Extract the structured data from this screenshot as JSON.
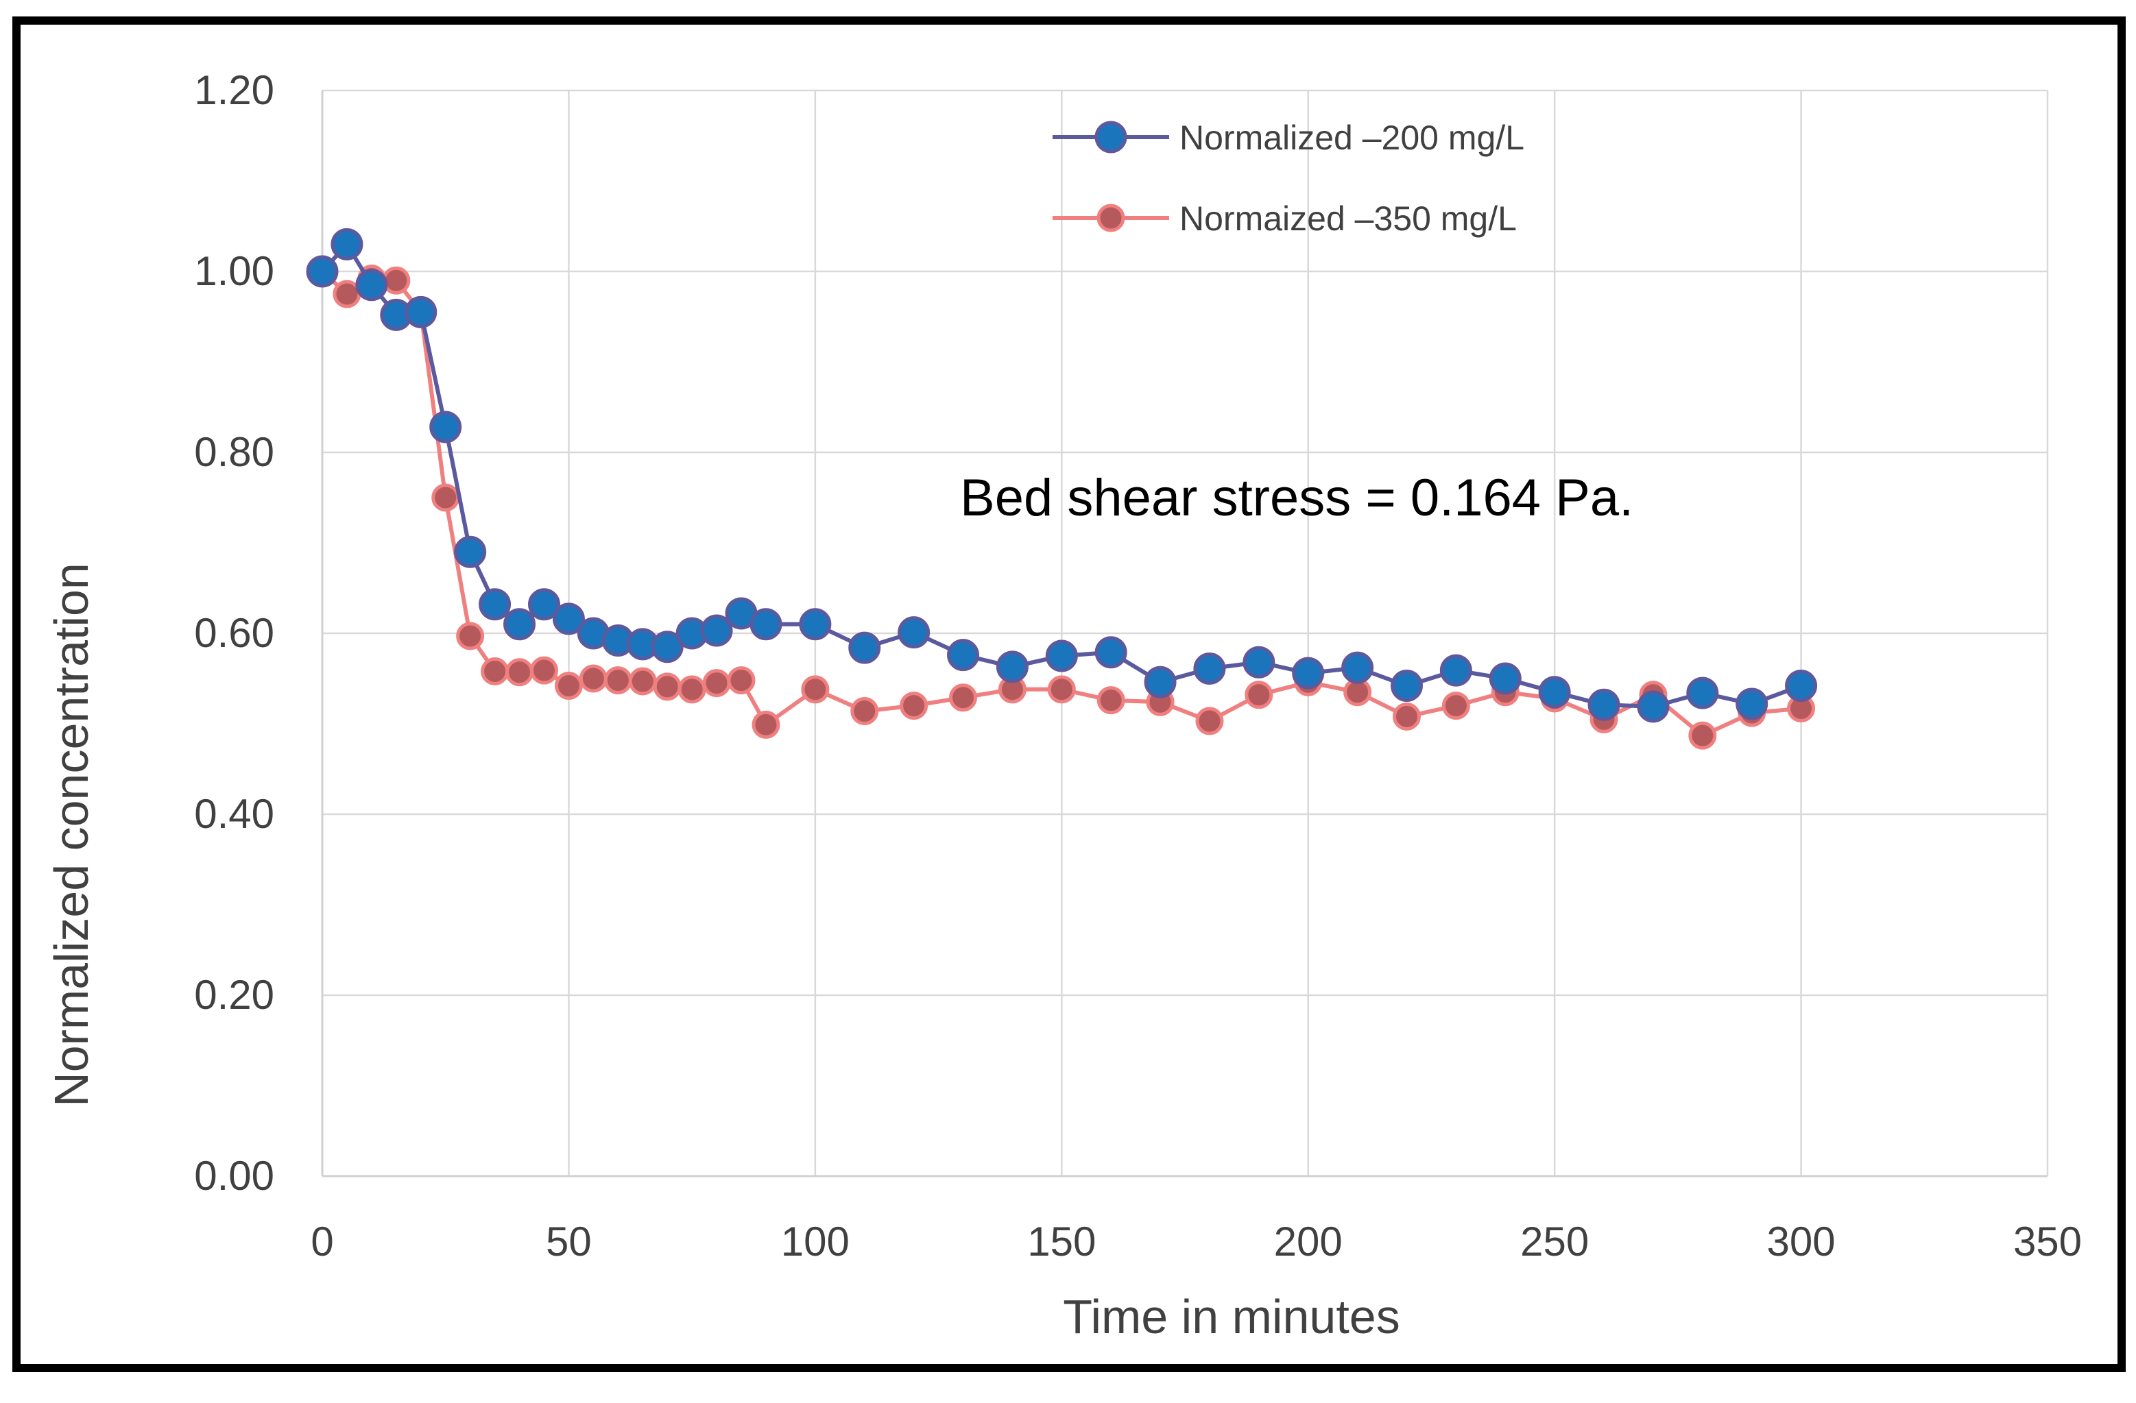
{
  "chart_data": {
    "type": "line",
    "title": "",
    "xlabel": "Time in minutes",
    "ylabel": "Normalized concentration",
    "xlim": [
      0,
      350
    ],
    "ylim": [
      0,
      1.2
    ],
    "x_ticks": [
      "0",
      "50",
      "100",
      "150",
      "200",
      "250",
      "300",
      "350"
    ],
    "y_ticks": [
      "0.00",
      "0.20",
      "0.40",
      "0.60",
      "0.80",
      "1.00",
      "1.20"
    ],
    "grid": true,
    "legend_position": "top-center",
    "annotation": "Bed shear stress = 0.164 Pa.",
    "series": [
      {
        "name": "Normalized –200 mg/L",
        "line_color": "#5B5A9E",
        "marker_color": "#1B75BC",
        "marker_edge": "#5B5A9E",
        "x": [
          0,
          5,
          10,
          15,
          20,
          25,
          30,
          35,
          40,
          45,
          50,
          55,
          60,
          65,
          70,
          75,
          80,
          85,
          90,
          100,
          110,
          120,
          130,
          140,
          150,
          160,
          170,
          180,
          190,
          200,
          210,
          220,
          230,
          240,
          250,
          260,
          270,
          280,
          290,
          300
        ],
        "values": [
          1.0,
          1.03,
          0.985,
          0.952,
          0.955,
          0.828,
          0.69,
          0.632,
          0.61,
          0.632,
          0.616,
          0.6,
          0.592,
          0.588,
          0.585,
          0.6,
          0.603,
          0.622,
          0.61,
          0.61,
          0.584,
          0.601,
          0.576,
          0.563,
          0.575,
          0.579,
          0.546,
          0.561,
          0.568,
          0.556,
          0.562,
          0.542,
          0.559,
          0.55,
          0.535,
          0.521,
          0.519,
          0.534,
          0.522,
          0.542
        ]
      },
      {
        "name": "Normaized –350 mg/L",
        "line_color": "#F08080",
        "marker_color": "#B5595C",
        "marker_edge": "#F08080",
        "x": [
          0,
          5,
          10,
          15,
          20,
          25,
          30,
          35,
          40,
          45,
          50,
          55,
          60,
          65,
          70,
          75,
          80,
          85,
          90,
          100,
          110,
          120,
          130,
          140,
          150,
          160,
          170,
          180,
          190,
          200,
          210,
          220,
          230,
          240,
          250,
          260,
          270,
          280,
          290,
          300
        ],
        "values": [
          1.0,
          0.975,
          0.992,
          0.99,
          0.955,
          0.75,
          0.597,
          0.558,
          0.557,
          0.559,
          0.542,
          0.55,
          0.548,
          0.547,
          0.541,
          0.538,
          0.545,
          0.548,
          0.499,
          0.538,
          0.514,
          0.52,
          0.529,
          0.538,
          0.538,
          0.526,
          0.524,
          0.503,
          0.532,
          0.546,
          0.535,
          0.508,
          0.52,
          0.535,
          0.528,
          0.505,
          0.532,
          0.487,
          0.512,
          0.517
        ]
      }
    ]
  }
}
